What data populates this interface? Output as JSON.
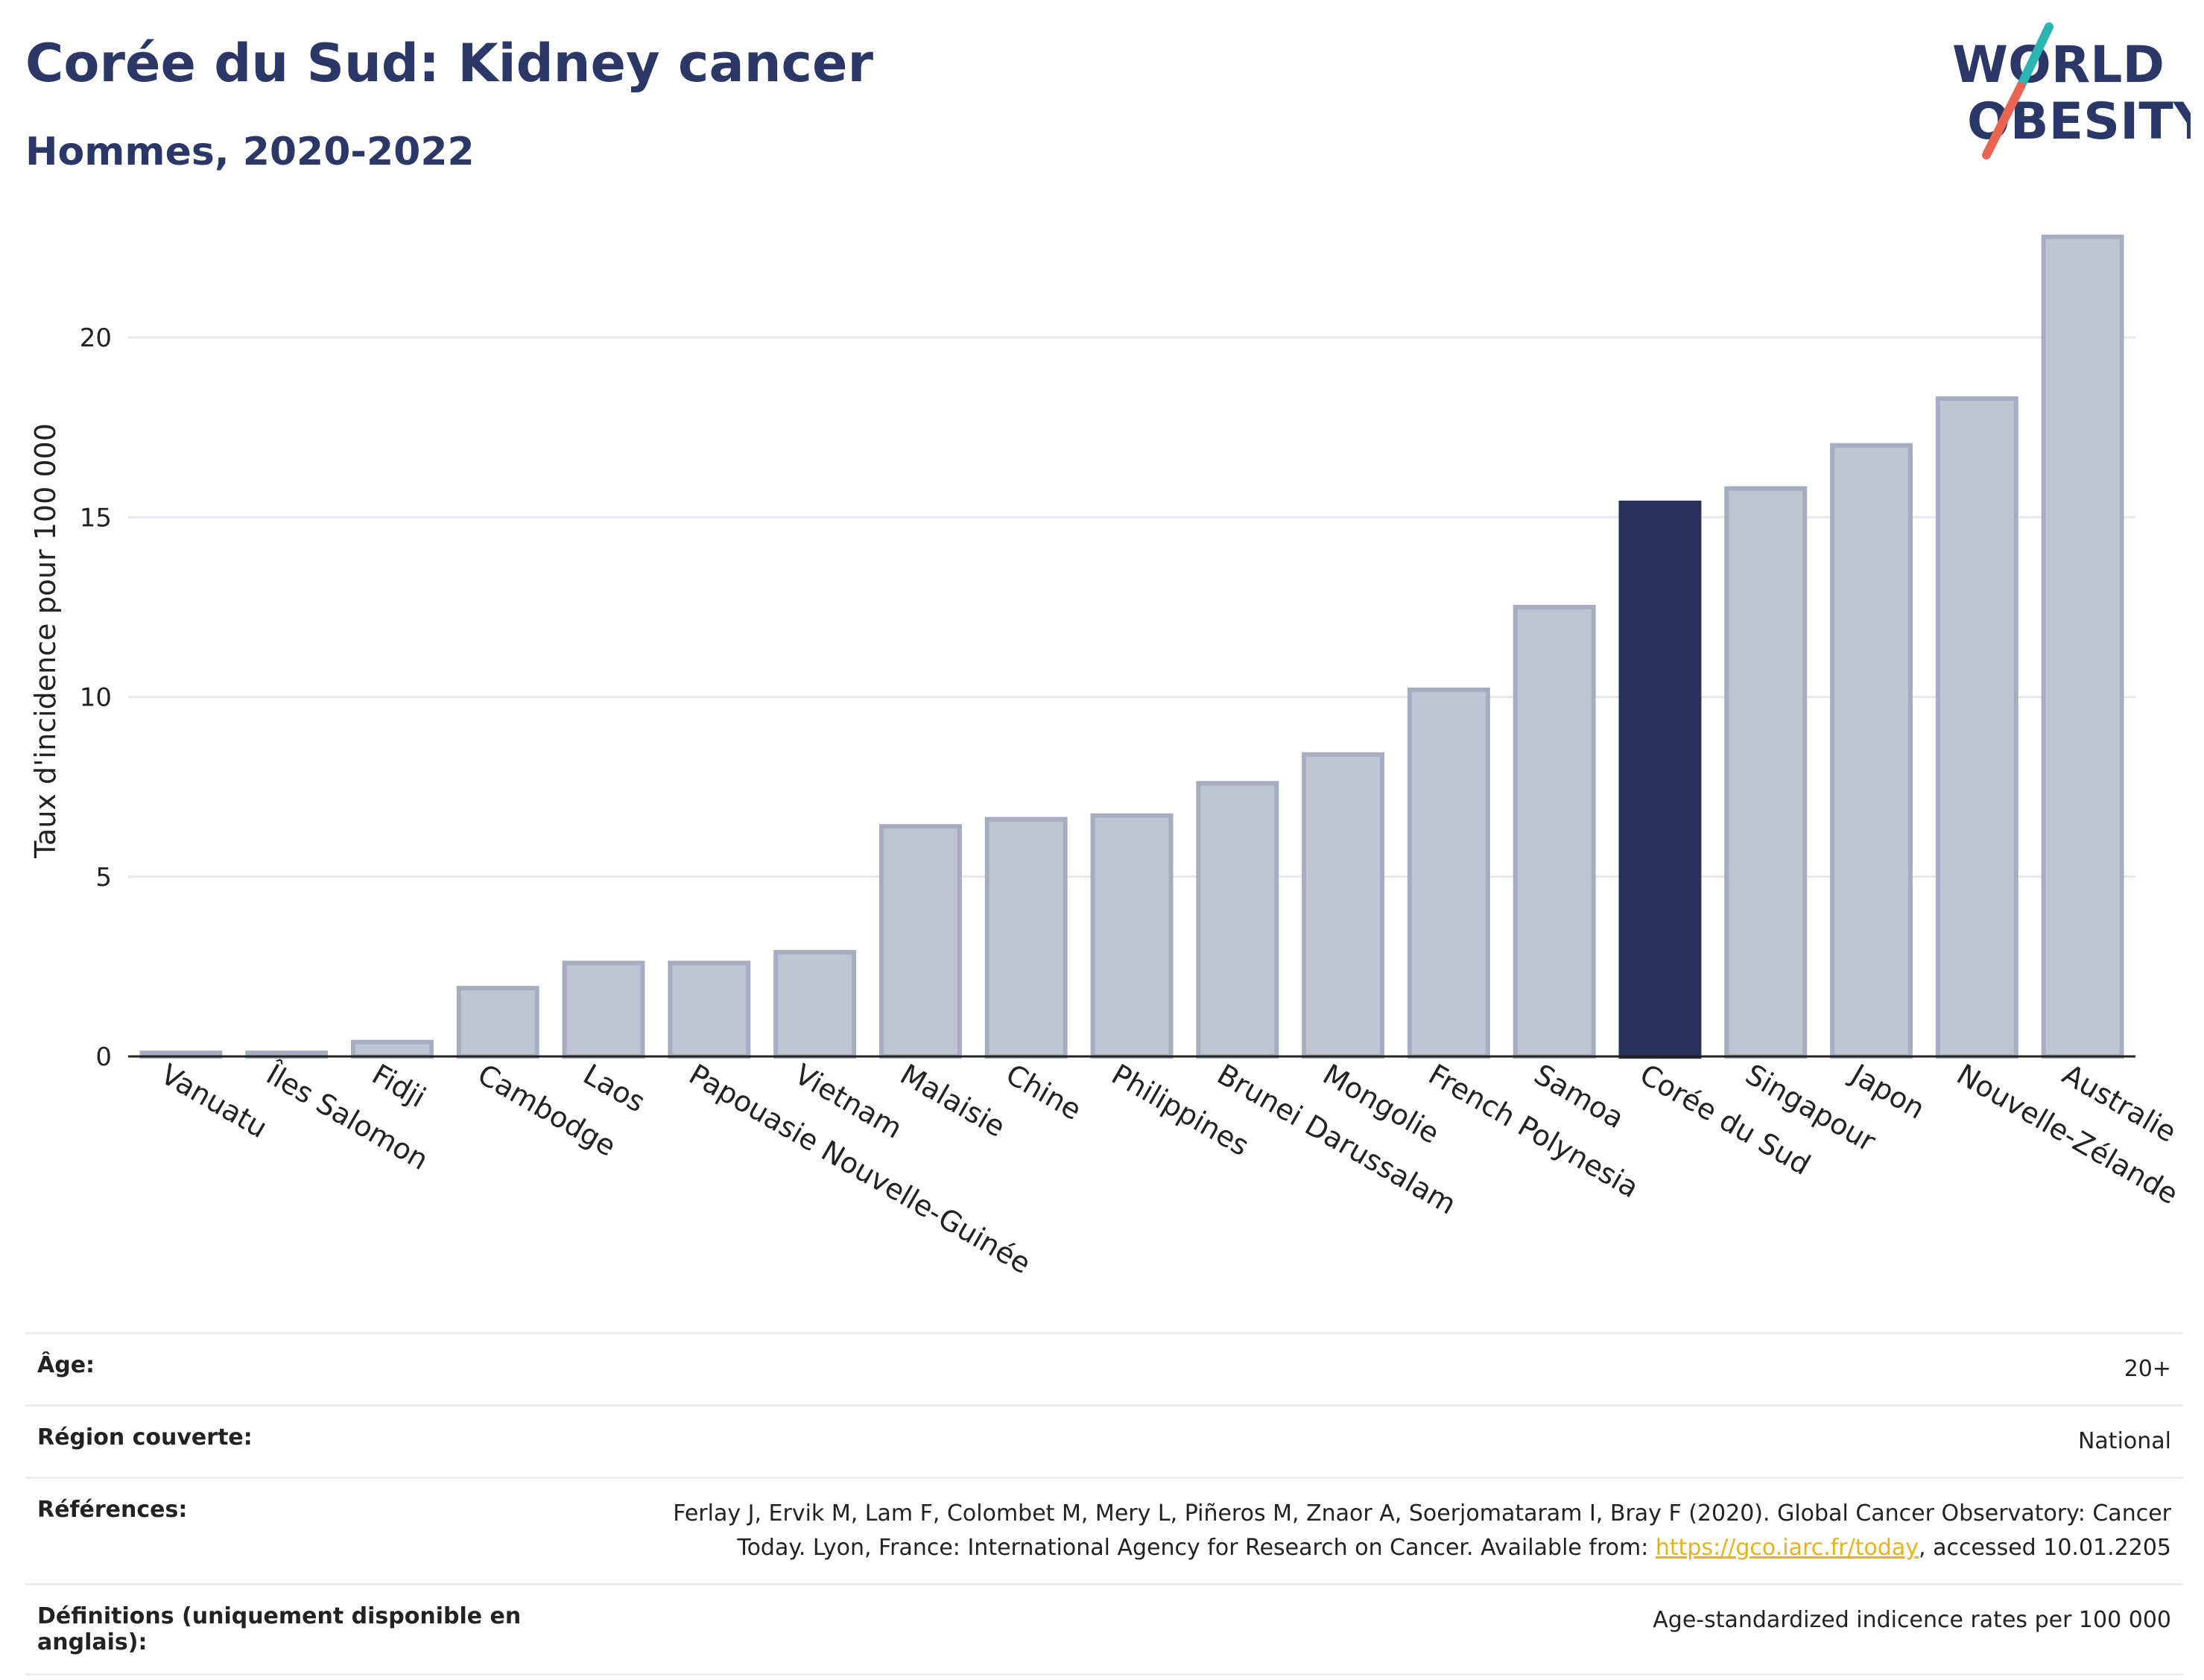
{
  "title": "Corée du Sud: Kidney cancer",
  "subtitle": "Hommes, 2020-2022",
  "logo": {
    "line1": "WORLD",
    "line2": "OBESITY"
  },
  "colors": {
    "highlight": "#283259",
    "bar_fill": "#c0c4d1",
    "bar_stroke": "#a7adc1",
    "grid": "#e6e8ee",
    "axis": "#222222",
    "logo_teal": "#2bb5b2",
    "logo_red": "#ea6452",
    "link": "#e8b21a"
  },
  "chart_data": {
    "type": "bar",
    "title": "Corée du Sud: Kidney cancer",
    "subtitle": "Hommes, 2020-2022",
    "ylabel": "Taux d'incidence pour 100 000",
    "xlabel": "",
    "ylim": [
      0,
      24
    ],
    "yticks": [
      0,
      5,
      10,
      15,
      20
    ],
    "grid": true,
    "highlight": "Corée du Sud",
    "categories": [
      "Vanuatu",
      "Îles Salomon",
      "Fidji",
      "Cambodge",
      "Laos",
      "Papouasie Nouvelle-Guinée",
      "Vietnam",
      "Malaisie",
      "Chine",
      "Philippines",
      "Brunei Darussalam",
      "Mongolie",
      "French Polynesia",
      "Samoa",
      "Corée du Sud",
      "Singapour",
      "Japon",
      "Nouvelle-Zélande",
      "Australie"
    ],
    "values": [
      0.1,
      0.1,
      0.4,
      1.9,
      2.6,
      2.6,
      2.9,
      6.4,
      6.6,
      6.7,
      7.6,
      8.4,
      10.2,
      12.5,
      15.4,
      15.8,
      17.0,
      18.3,
      22.8
    ]
  },
  "info": {
    "age_label": "Âge:",
    "age_value": "20+",
    "region_label": "Région couverte:",
    "region_value": "National",
    "references_label": "Références:",
    "references_line1": "Ferlay J, Ervik M, Lam F, Colombet M, Mery L, Piñeros M, Znaor A, Soerjomataram I, Bray F (2020). Global Cancer Observatory: Cancer",
    "references_line2_pre": "Today. Lyon, France: International Agency for Research on Cancer. Available from: ",
    "references_link": "https://gco.iarc.fr/today",
    "references_line2_post": ", accessed 10.01.2205",
    "definitions_label": "Définitions (uniquement disponible en anglais):",
    "definitions_value": "Age-standardized indicence rates per 100 000"
  }
}
